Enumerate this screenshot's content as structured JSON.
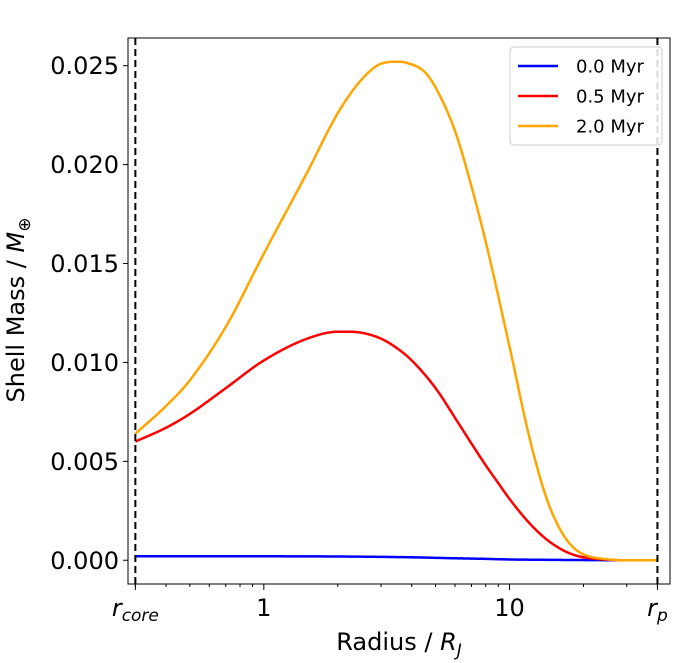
{
  "chart_data": {
    "type": "line",
    "title": "",
    "xlabel": "Radius / R_J",
    "ylabel": "Shell Mass / M_⊕",
    "xscale": "log",
    "xlim": [
      0.28,
      45
    ],
    "ylim": [
      -0.0012,
      0.0264
    ],
    "grid": false,
    "legend_position": "top-right",
    "y_ticks": [
      {
        "value": 0.0,
        "label": "0.000"
      },
      {
        "value": 0.005,
        "label": "0.005"
      },
      {
        "value": 0.01,
        "label": "0.010"
      },
      {
        "value": 0.015,
        "label": "0.015"
      },
      {
        "value": 0.02,
        "label": "0.020"
      },
      {
        "value": 0.025,
        "label": "0.025"
      }
    ],
    "x_ticks": [
      {
        "value": 0.3,
        "label": "r",
        "sub": "core"
      },
      {
        "value": 1,
        "label": "1",
        "sub": ""
      },
      {
        "value": 10,
        "label": "10",
        "sub": ""
      },
      {
        "value": 40,
        "label": "r",
        "sub": "p"
      }
    ],
    "vlines": [
      0.3,
      40
    ],
    "series": [
      {
        "name": "0.0 Myr",
        "color": "#0000ff",
        "x": [
          0.3,
          0.5,
          1,
          2,
          4,
          6,
          8,
          10,
          15,
          20,
          30,
          40
        ],
        "values": [
          0.0002,
          0.0002,
          0.0002,
          0.00019,
          0.00015,
          0.0001,
          7e-05,
          4e-05,
          2e-05,
          1e-05,
          0.0,
          0.0
        ]
      },
      {
        "name": "0.5 Myr",
        "color": "#ff0000",
        "x": [
          0.3,
          0.4,
          0.5,
          0.7,
          1,
          1.5,
          2,
          2.2,
          2.5,
          3,
          3.5,
          4,
          5,
          6,
          7,
          8,
          9,
          10,
          12,
          14,
          16,
          18,
          20,
          25,
          30,
          40
        ],
        "values": [
          0.006,
          0.0067,
          0.0074,
          0.0087,
          0.0101,
          0.0112,
          0.01155,
          0.01155,
          0.0115,
          0.0112,
          0.0107,
          0.0101,
          0.0087,
          0.0072,
          0.0059,
          0.0048,
          0.0039,
          0.0031,
          0.0019,
          0.0011,
          0.0006,
          0.0003,
          0.00015,
          3e-05,
          0.0,
          0.0
        ]
      },
      {
        "name": "2.0 Myr",
        "color": "#ffa500",
        "x": [
          0.3,
          0.4,
          0.5,
          0.7,
          1,
          1.5,
          2,
          2.5,
          3,
          3.5,
          3.8,
          4.5,
          5,
          6,
          7,
          8,
          10,
          12,
          14,
          16,
          18,
          20,
          25,
          30,
          40
        ],
        "values": [
          0.0064,
          0.0078,
          0.0091,
          0.0118,
          0.0155,
          0.0196,
          0.0226,
          0.0243,
          0.0251,
          0.0252,
          0.02515,
          0.0247,
          0.0239,
          0.0217,
          0.0189,
          0.0161,
          0.0108,
          0.0063,
          0.0033,
          0.0016,
          0.0007,
          0.0003,
          5e-05,
          0.0,
          0.0
        ]
      }
    ]
  }
}
